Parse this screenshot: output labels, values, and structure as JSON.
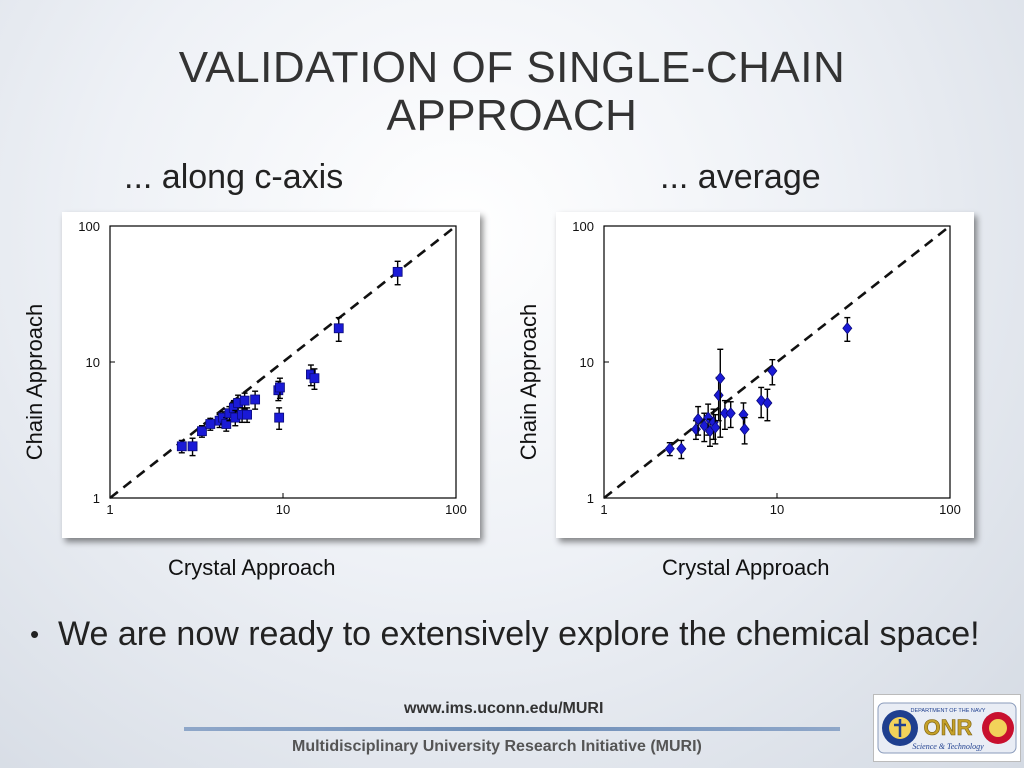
{
  "slide": {
    "title": "VALIDATION OF SINGLE-CHAIN APPROACH",
    "subtitle_left": "... along c-axis",
    "subtitle_right": "... average",
    "bullet": "We are now ready to extensively explore the chemical space!",
    "footer_url": "www.ims.uconn.edu/MURI",
    "footer_text": "Multidisciplinary University Research Initiative (MURI)"
  },
  "logo": {
    "text": "ONR",
    "ring_text": "DEPARTMENT OF THE NAVY",
    "bottom_text": "Science & Technology"
  },
  "colors": {
    "marker": "#1a1ad6",
    "marker_edge": "#0a0a7a",
    "axis": "#000000",
    "dashed_line": "#111111"
  },
  "chart_data": [
    {
      "type": "scatter",
      "title": "... along c-axis",
      "xlabel": "Crystal Approach",
      "ylabel": "Chain Approach",
      "xscale": "log",
      "yscale": "log",
      "xlim": [
        1,
        100
      ],
      "ylim": [
        1,
        100
      ],
      "xticks": [
        "1",
        "10",
        "100"
      ],
      "yticks": [
        "1",
        "10",
        "100"
      ],
      "marker": "square",
      "reference_line": "y = x (dashed)",
      "points": [
        {
          "x": 2.6,
          "y": 2.4,
          "err": [
            0.25,
            0.25
          ]
        },
        {
          "x": 3.0,
          "y": 2.4,
          "err": [
            0.35,
            0.35
          ]
        },
        {
          "x": 3.4,
          "y": 3.1,
          "err": [
            0.3,
            0.3
          ]
        },
        {
          "x": 3.8,
          "y": 3.5,
          "err": [
            0.35,
            0.35
          ]
        },
        {
          "x": 4.3,
          "y": 3.7,
          "err": [
            0.4,
            0.4
          ]
        },
        {
          "x": 4.5,
          "y": 3.9,
          "err": [
            0.4,
            0.4
          ]
        },
        {
          "x": 4.7,
          "y": 3.5,
          "err": [
            0.4,
            0.4
          ]
        },
        {
          "x": 4.9,
          "y": 4.2,
          "err": [
            0.5,
            0.5
          ]
        },
        {
          "x": 5.2,
          "y": 4.6,
          "err": [
            0.6,
            0.6
          ]
        },
        {
          "x": 5.3,
          "y": 3.9,
          "err": [
            0.5,
            0.5
          ]
        },
        {
          "x": 5.5,
          "y": 5.0,
          "err": [
            0.7,
            0.7
          ]
        },
        {
          "x": 5.8,
          "y": 4.1,
          "err": [
            0.5,
            0.5
          ]
        },
        {
          "x": 6.0,
          "y": 5.2,
          "err": [
            0.7,
            0.7
          ]
        },
        {
          "x": 6.2,
          "y": 4.1,
          "err": [
            0.5,
            0.5
          ]
        },
        {
          "x": 6.9,
          "y": 5.3,
          "err": [
            0.8,
            0.8
          ]
        },
        {
          "x": 9.4,
          "y": 6.2,
          "err": [
            1.0,
            1.0
          ]
        },
        {
          "x": 9.6,
          "y": 6.5,
          "err": [
            1.1,
            1.1
          ]
        },
        {
          "x": 9.5,
          "y": 3.9,
          "err": [
            0.7,
            0.7
          ]
        },
        {
          "x": 14.5,
          "y": 8.1,
          "err": [
            1.4,
            1.4
          ]
        },
        {
          "x": 15.2,
          "y": 7.6,
          "err": [
            1.3,
            1.3
          ]
        },
        {
          "x": 21.0,
          "y": 17.7,
          "err": [
            3.5,
            3.5
          ]
        },
        {
          "x": 46.0,
          "y": 46.0,
          "err": [
            9.0,
            9.0
          ]
        }
      ]
    },
    {
      "type": "scatter",
      "title": "... average",
      "xlabel": "Crystal Approach",
      "ylabel": "Chain Approach",
      "xscale": "log",
      "yscale": "log",
      "xlim": [
        1,
        100
      ],
      "ylim": [
        1,
        100
      ],
      "xticks": [
        "1",
        "10",
        "100"
      ],
      "yticks": [
        "1",
        "10",
        "100"
      ],
      "marker": "diamond",
      "reference_line": "y = x (dashed)",
      "points": [
        {
          "x": 2.4,
          "y": 2.3,
          "err": [
            0.25,
            0.25
          ]
        },
        {
          "x": 2.8,
          "y": 2.3,
          "err": [
            0.35,
            0.35
          ]
        },
        {
          "x": 3.4,
          "y": 3.2,
          "err": [
            0.5,
            0.5
          ]
        },
        {
          "x": 3.5,
          "y": 3.8,
          "err": [
            0.9,
            0.9
          ]
        },
        {
          "x": 3.8,
          "y": 3.4,
          "err": [
            0.8,
            0.8
          ]
        },
        {
          "x": 4.0,
          "y": 3.9,
          "err": [
            1.0,
            1.0
          ]
        },
        {
          "x": 4.1,
          "y": 3.1,
          "err": [
            0.7,
            0.7
          ]
        },
        {
          "x": 4.3,
          "y": 3.6,
          "err": [
            0.9,
            0.9
          ]
        },
        {
          "x": 4.4,
          "y": 3.3,
          "err": [
            0.8,
            0.8
          ]
        },
        {
          "x": 4.6,
          "y": 5.7,
          "err": [
            2.0,
            2.0
          ]
        },
        {
          "x": 4.7,
          "y": 7.6,
          "err": [
            4.8,
            4.8
          ]
        },
        {
          "x": 5.0,
          "y": 4.2,
          "err": [
            1.0,
            1.0
          ]
        },
        {
          "x": 5.4,
          "y": 4.2,
          "err": [
            0.9,
            0.9
          ]
        },
        {
          "x": 6.4,
          "y": 4.1,
          "err": [
            0.9,
            0.9
          ]
        },
        {
          "x": 6.5,
          "y": 3.2,
          "err": [
            0.7,
            0.7
          ]
        },
        {
          "x": 8.1,
          "y": 5.2,
          "err": [
            1.3,
            1.3
          ]
        },
        {
          "x": 8.8,
          "y": 5.0,
          "err": [
            1.3,
            1.3
          ]
        },
        {
          "x": 9.4,
          "y": 8.6,
          "err": [
            1.8,
            1.8
          ]
        },
        {
          "x": 25.5,
          "y": 17.7,
          "err": [
            3.5,
            3.5
          ]
        }
      ]
    }
  ]
}
